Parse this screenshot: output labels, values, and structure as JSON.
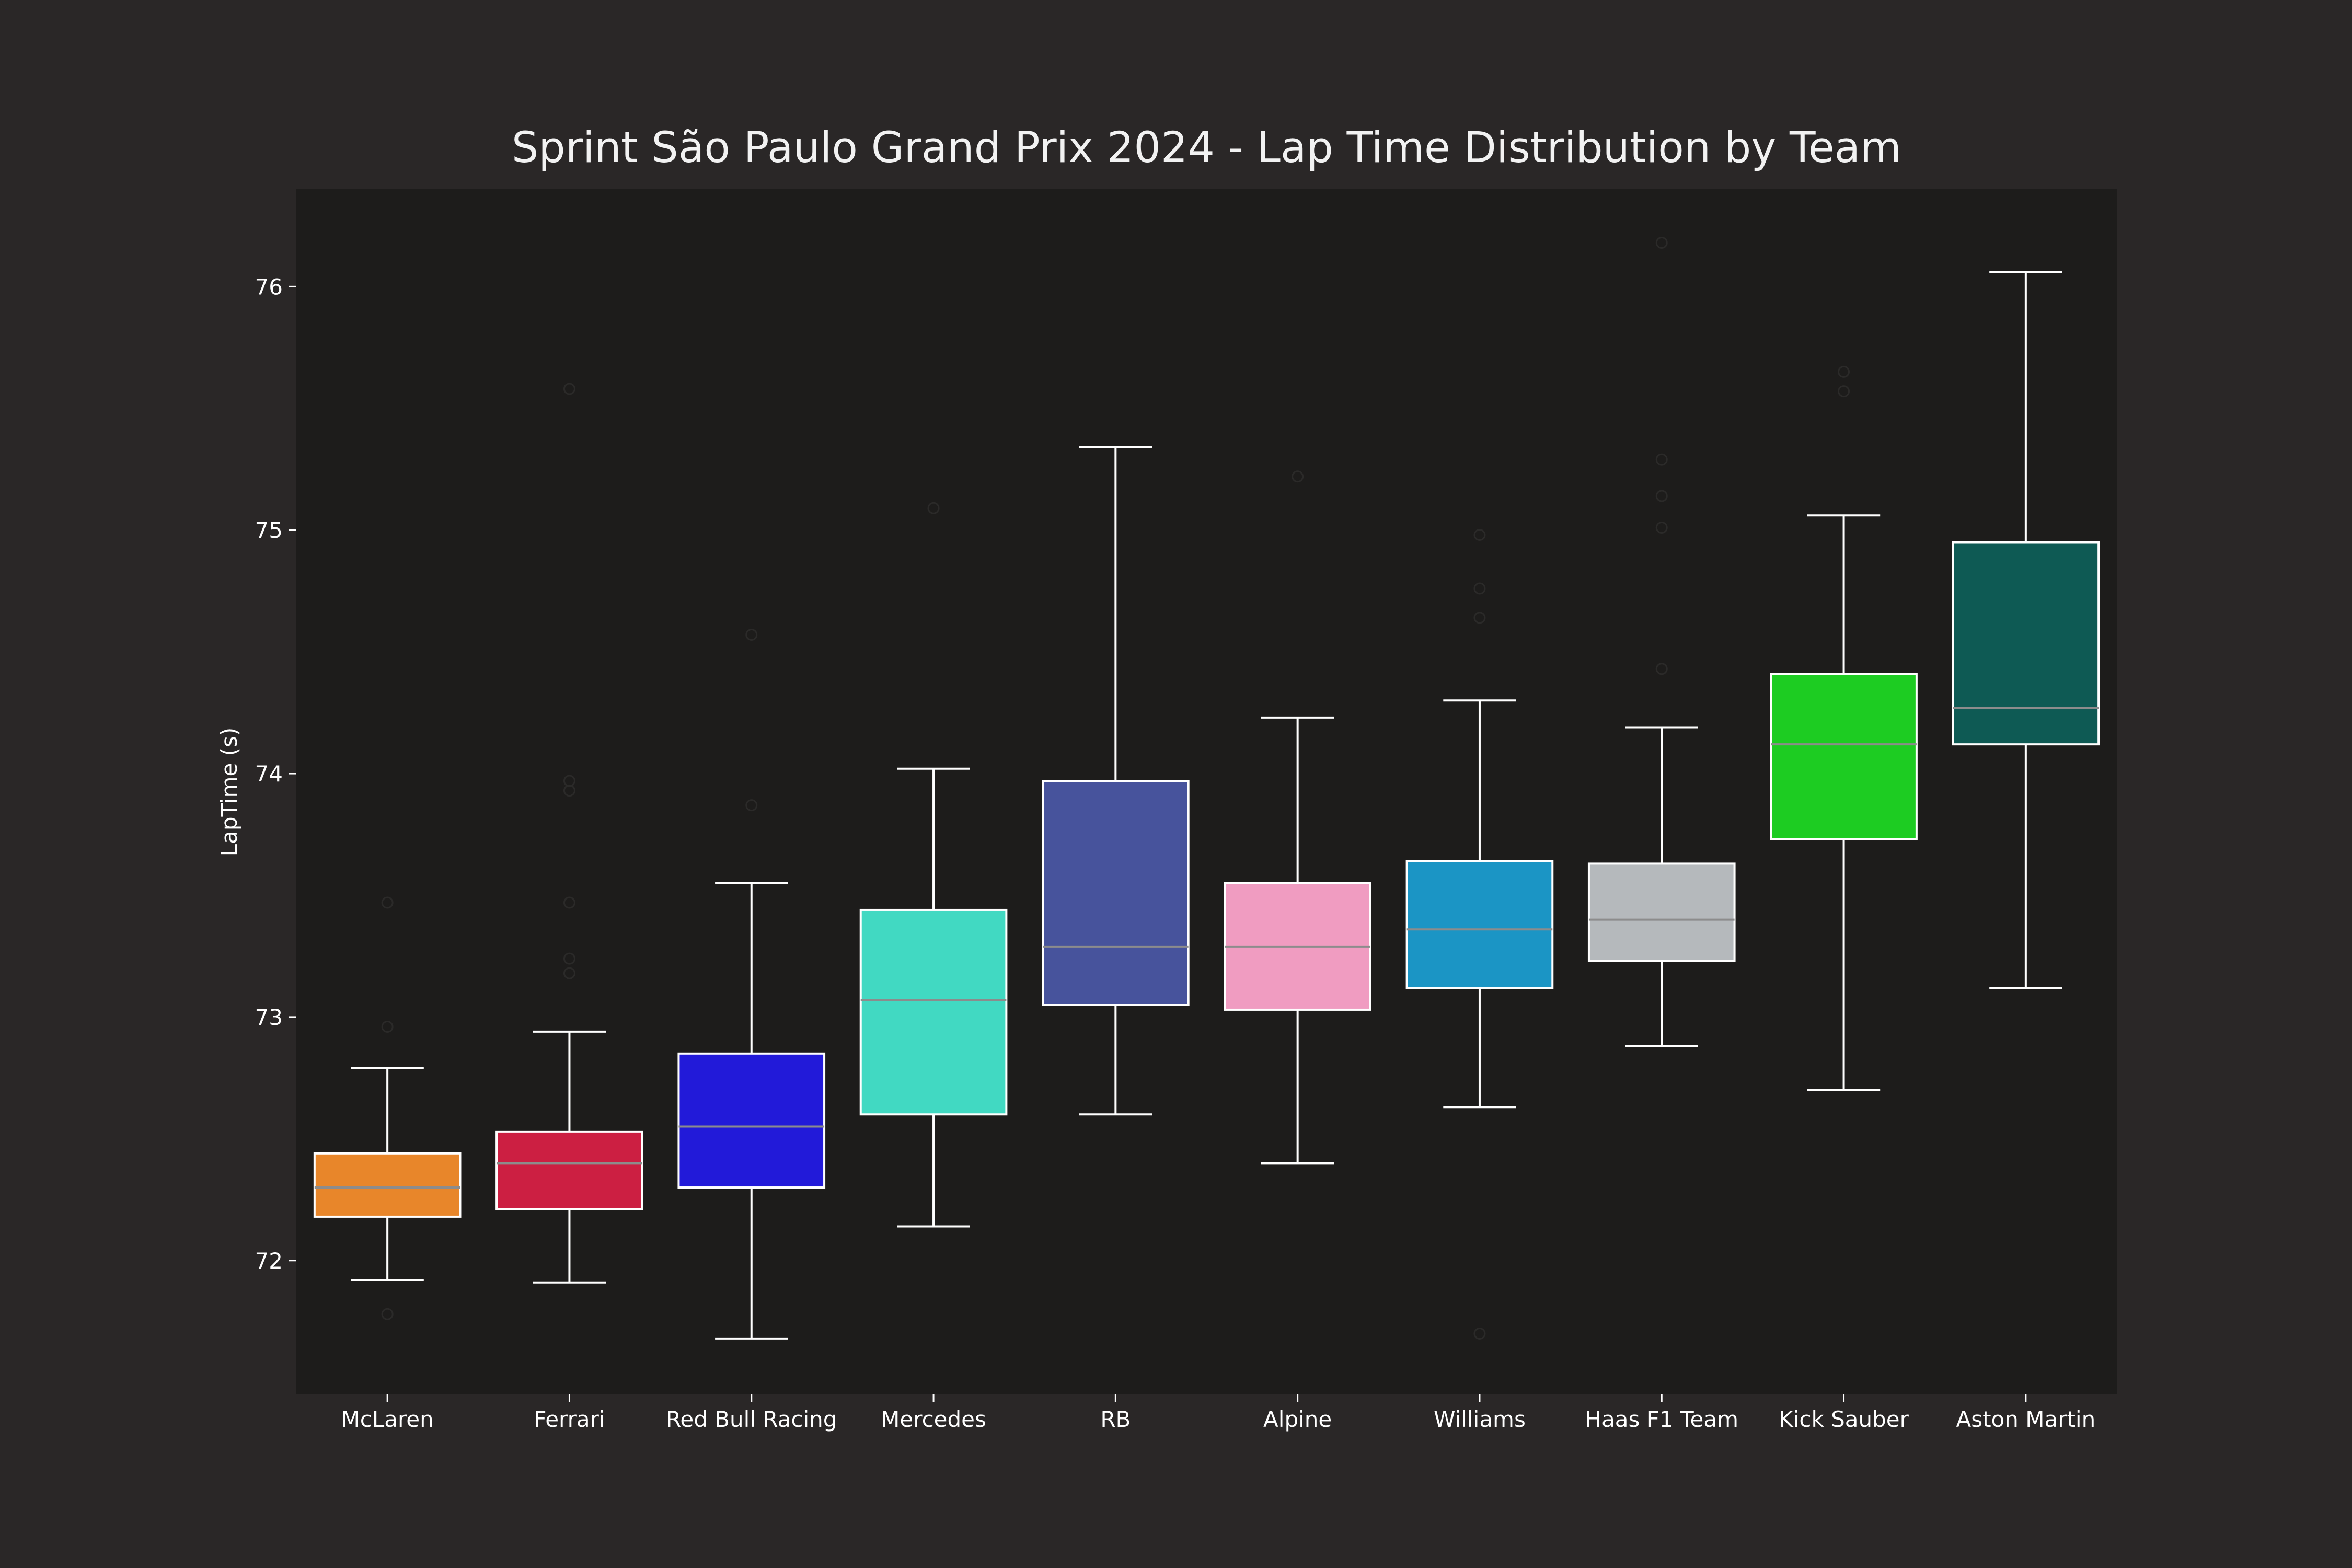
{
  "chart_data": {
    "type": "box",
    "title": "Sprint São Paulo Grand Prix 2024 - Lap Time Distribution by Team",
    "xlabel": "",
    "ylabel": "LapTime (s)",
    "ylim": [
      71.45,
      76.4
    ],
    "yticks": [
      72,
      73,
      74,
      75,
      76
    ],
    "grid": false,
    "legend": "none",
    "background": "#2a2727",
    "plot_background": "#1d1c1b",
    "text_color": "#ffffff",
    "categories": [
      "McLaren",
      "Ferrari",
      "Red Bull Racing",
      "Mercedes",
      "RB",
      "Alpine",
      "Williams",
      "Haas F1 Team",
      "Kick Sauber",
      "Aston Martin"
    ],
    "boxes": [
      {
        "team": "McLaren",
        "color": "#e8862a",
        "whislo": 71.92,
        "q1": 72.18,
        "med": 72.3,
        "q3": 72.44,
        "whishi": 72.79,
        "fliers": [
          71.78,
          72.96,
          73.47
        ]
      },
      {
        "team": "Ferrari",
        "color": "#cc1f42",
        "whislo": 71.91,
        "q1": 72.21,
        "med": 72.4,
        "q3": 72.53,
        "whishi": 72.94,
        "fliers": [
          73.18,
          73.24,
          73.47,
          73.93,
          73.97,
          75.58
        ]
      },
      {
        "team": "Red Bull Racing",
        "color": "#221ad9",
        "whislo": 71.68,
        "q1": 72.3,
        "med": 72.55,
        "q3": 72.85,
        "whishi": 73.55,
        "fliers": [
          73.87,
          74.57
        ]
      },
      {
        "team": "Mercedes",
        "color": "#41d9c2",
        "whislo": 72.14,
        "q1": 72.6,
        "med": 73.07,
        "q3": 73.44,
        "whishi": 74.02,
        "fliers": [
          75.09
        ]
      },
      {
        "team": "RB",
        "color": "#47539c",
        "whislo": 72.6,
        "q1": 73.05,
        "med": 73.29,
        "q3": 73.97,
        "whishi": 75.34,
        "fliers": []
      },
      {
        "team": "Alpine",
        "color": "#f09cc1",
        "whislo": 72.4,
        "q1": 73.03,
        "med": 73.29,
        "q3": 73.55,
        "whishi": 74.23,
        "fliers": [
          75.22
        ]
      },
      {
        "team": "Williams",
        "color": "#1b95c5",
        "whislo": 72.63,
        "q1": 73.12,
        "med": 73.36,
        "q3": 73.64,
        "whishi": 74.3,
        "fliers": [
          71.7,
          74.64,
          74.76,
          74.98
        ]
      },
      {
        "team": "Haas F1 Team",
        "color": "#b5b9bc",
        "whislo": 72.88,
        "q1": 73.23,
        "med": 73.4,
        "q3": 73.63,
        "whishi": 74.19,
        "fliers": [
          74.43,
          75.01,
          75.14,
          75.29,
          76.18
        ]
      },
      {
        "team": "Kick Sauber",
        "color": "#1dcc22",
        "whislo": 72.7,
        "q1": 73.73,
        "med": 74.12,
        "q3": 74.41,
        "whishi": 75.06,
        "fliers": [
          75.57,
          75.65
        ]
      },
      {
        "team": "Aston Martin",
        "color": "#0e5a54",
        "whislo": 73.12,
        "q1": 74.12,
        "med": 74.27,
        "q3": 74.95,
        "whishi": 76.06,
        "fliers": []
      }
    ]
  }
}
